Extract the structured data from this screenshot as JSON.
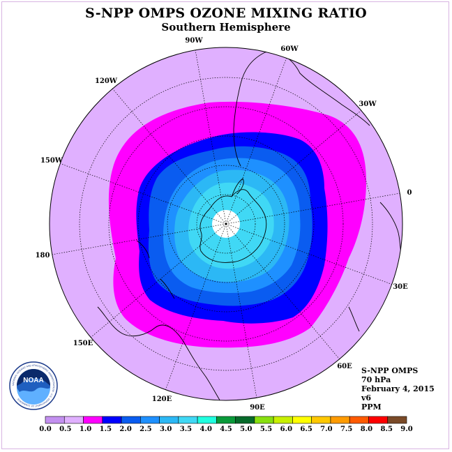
{
  "title": "S-NPP OMPS OZONE MIXING RATIO",
  "subtitle": "Southern Hemisphere",
  "longitudes": [
    "90W",
    "60W",
    "30W",
    "0",
    "30E",
    "60E",
    "90E",
    "120E",
    "150E",
    "180",
    "150W",
    "120W"
  ],
  "info": {
    "instrument": "S-NPP OMPS",
    "level": "70 hPa",
    "date": "February 4, 2015",
    "version": "v6",
    "units": "PPM"
  },
  "logo": {
    "text": "NOAA",
    "ring_text": "NATIONAL OCEANIC AND ATMOSPHERIC ADMINISTRATION · U.S. DEPARTMENT OF COMMERCE"
  },
  "colorbar": {
    "ticks": [
      "0.0",
      "0.5",
      "1.0",
      "1.5",
      "2.0",
      "2.5",
      "3.0",
      "3.5",
      "4.0",
      "4.5",
      "5.0",
      "5.5",
      "6.0",
      "6.5",
      "7.0",
      "7.5",
      "8.0",
      "8.5",
      "9.0"
    ],
    "colors": [
      "#c390f0",
      "#e0b0ff",
      "#ff00ff",
      "#0000ff",
      "#0a5cf0",
      "#1e90ff",
      "#2cb8f5",
      "#40d8f5",
      "#20ffe0",
      "#0a9a3a",
      "#066a2a",
      "#88e010",
      "#c8f000",
      "#ffff00",
      "#ffc800",
      "#ff9b00",
      "#ff5a00",
      "#ff0000",
      "#7a4a28"
    ]
  },
  "map_colors": {
    "background": "#e0b0ff",
    "band_1_0": "#ff00ff",
    "band_1_5": "#0000ff",
    "band_2_0": "#0a5cf0",
    "band_2_5": "#1e90ff",
    "band_3_0": "#2cb8f5",
    "band_3_5": "#40d8f5",
    "pole": "#ffffff"
  }
}
